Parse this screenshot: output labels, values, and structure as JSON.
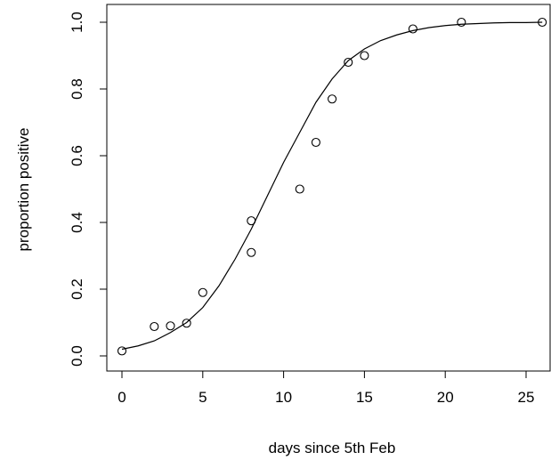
{
  "chart_data": {
    "type": "scatter",
    "xlabel": "days since 5th Feb",
    "ylabel": "proportion positive",
    "xlim": [
      0,
      26
    ],
    "ylim": [
      0,
      1
    ],
    "x_ticks": [
      0,
      5,
      10,
      15,
      20,
      25
    ],
    "y_ticks": [
      0.0,
      0.2,
      0.4,
      0.6,
      0.8,
      1.0
    ],
    "x_tick_labels": [
      "0",
      "5",
      "10",
      "15",
      "20",
      "25"
    ],
    "y_tick_labels": [
      "0.0",
      "0.2",
      "0.4",
      "0.6",
      "0.8",
      "1.0"
    ],
    "grid": false,
    "series": [
      {
        "marker": "open-circle",
        "x": [
          0,
          2,
          3,
          4,
          5,
          8,
          8,
          11,
          12,
          13,
          14,
          15,
          18,
          21,
          26
        ],
        "y": [
          0.015,
          0.088,
          0.09,
          0.098,
          0.19,
          0.31,
          0.405,
          0.5,
          0.64,
          0.77,
          0.88,
          0.9,
          0.98,
          1.0,
          1.0
        ]
      },
      {
        "type": "line",
        "x": [
          0,
          1,
          2,
          3,
          4,
          5,
          6,
          7,
          8,
          9,
          10,
          11,
          12,
          13,
          14,
          15,
          16,
          17,
          18,
          19,
          20,
          21,
          22,
          23,
          24,
          25,
          26
        ],
        "y": [
          0.02,
          0.03,
          0.045,
          0.07,
          0.1,
          0.145,
          0.21,
          0.29,
          0.38,
          0.48,
          0.58,
          0.67,
          0.76,
          0.83,
          0.885,
          0.92,
          0.945,
          0.962,
          0.975,
          0.984,
          0.99,
          0.994,
          0.996,
          0.998,
          0.999,
          0.999,
          1.0
        ]
      }
    ]
  }
}
